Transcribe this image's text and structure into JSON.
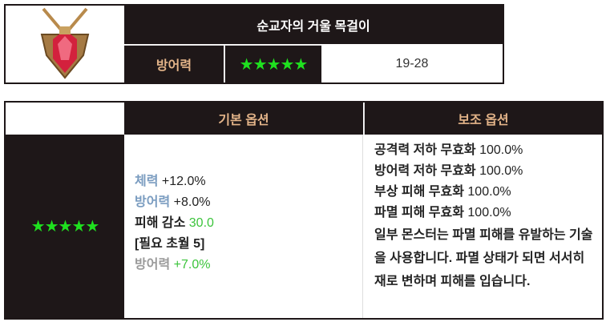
{
  "item": {
    "name": "순교자의 거울 목걸이",
    "icon": "ruby-pendant-necklace-icon",
    "stat_label": "방어력",
    "grade_stars": "★★★★★",
    "stat_value": "19-28"
  },
  "options": {
    "headers": {
      "basic": "기본 옵션",
      "sub": "보조 옵션"
    },
    "grade_stars": "★★★★★",
    "basic": [
      {
        "label": "체력",
        "value": "+12.0%"
      },
      {
        "label": "방어력",
        "value": "+8.0%"
      },
      {
        "label": "피해 감소",
        "value": "30.0"
      },
      {
        "label": "[필요 초월 5]"
      },
      {
        "label": "방어력",
        "value": "+7.0%"
      }
    ],
    "sub": [
      {
        "label": "공격력 저하 무효화",
        "value": "100.0%"
      },
      {
        "label": "방어력 저하 무효화",
        "value": "100.0%"
      },
      {
        "label": "부상 피해 무효화",
        "value": "100.0%"
      },
      {
        "label": "파멸 피해 무효화",
        "value": "100.0%"
      }
    ],
    "description": "일부 몬스터는 파멸 피해를 유발하는 기술을 사용합니다. 파멸 상태가 되면 서서히 재로 변하며 피해를 입습니다."
  },
  "colors": {
    "dark": "#1e1718",
    "header_text": "#e3b489",
    "stars": "#1fe01f",
    "stat_blue": "#7a9cc0",
    "value_green": "#3cc43c"
  }
}
